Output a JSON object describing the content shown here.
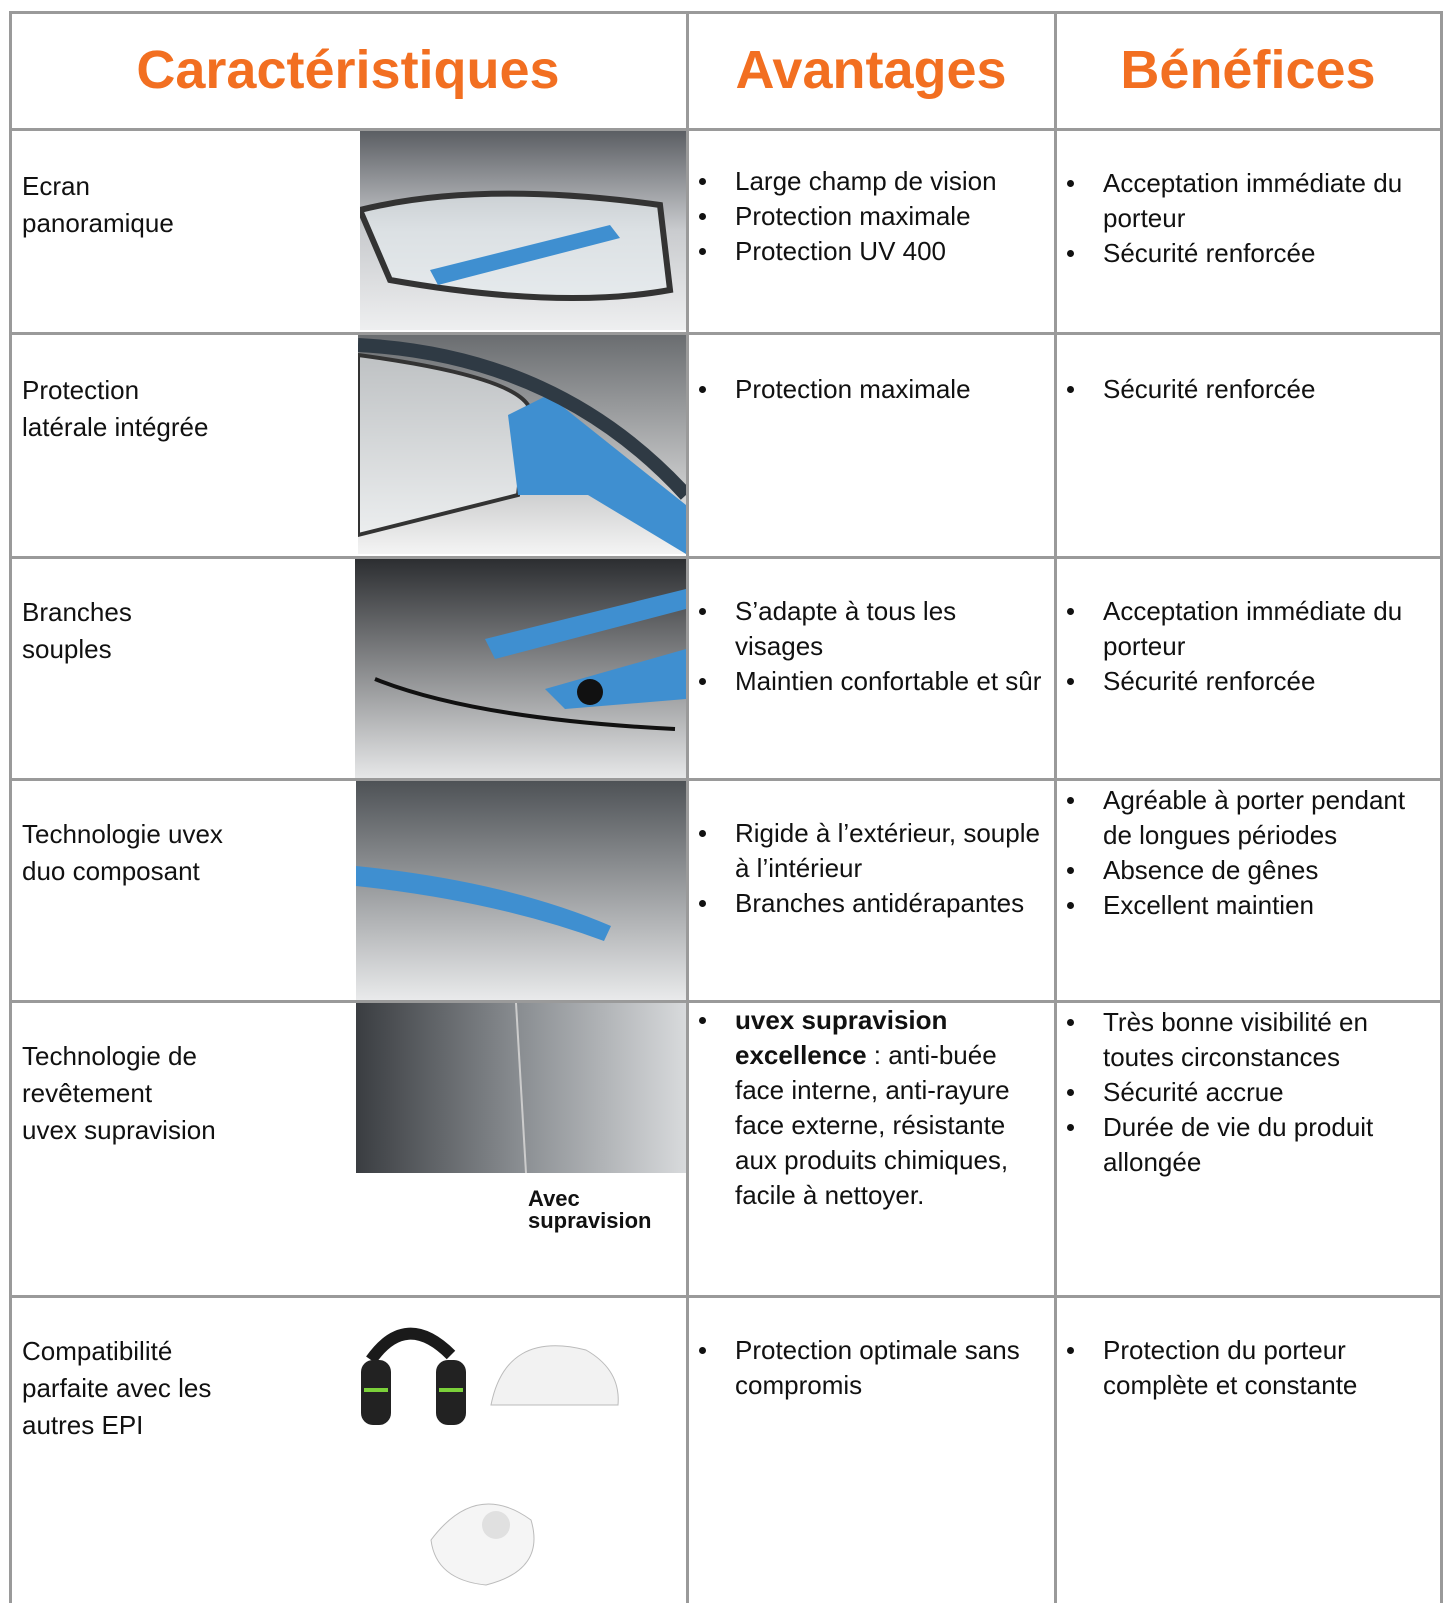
{
  "header": [
    "Caractéristiques",
    "Avantages",
    "Bénéfices"
  ],
  "rows": [
    {
      "feature": "Ecran\npanoramique",
      "advantages": [
        "Large champ de vision",
        "Protection maximale",
        "Protection UV 400"
      ],
      "benefits": [
        "Acceptation immédiate du porteur",
        "Sécurité renforcée"
      ]
    },
    {
      "feature": "Protection\nlatérale intégrée",
      "advantages": [
        "Protection maximale"
      ],
      "benefits": [
        "Sécurité renforcée"
      ]
    },
    {
      "feature": "Branches\nsouples",
      "advantages": [
        "S’adapte à tous les visages",
        "Maintien confortable et sûr"
      ],
      "benefits": [
        "Acceptation immédiate du porteur",
        "Sécurité renforcée"
      ]
    },
    {
      "feature": "Technologie uvex\nduo composant",
      "advantages": [
        "Rigide à l’extérieur, souple à l’intérieur",
        "Branches antidérapantes"
      ],
      "benefits": [
        "Agréable à porter pendant de longues périodes",
        "Absence de gênes",
        "Excellent maintien"
      ]
    },
    {
      "feature": "Technologie de\nrevêtement\nuvex supravision",
      "caption": "Avec\nsupravision",
      "advantages": [
        {
          "strong": "uvex supravision excellence",
          "rest": ": anti-buée face interne, anti-rayure face externe, résistante aux produits chimiques, facile à  nettoyer."
        }
      ],
      "benefits": [
        "Très bonne visibilité en toutes circonstances",
        "Sécurité accrue",
        "Durée de vie du produit allongée"
      ]
    },
    {
      "feature": "Compatibilité\nparfaite avec les\nautres EPI",
      "advantages": [
        "Protection optimale sans compromis"
      ],
      "benefits": [
        "Protection du porteur complète et constante"
      ]
    }
  ]
}
